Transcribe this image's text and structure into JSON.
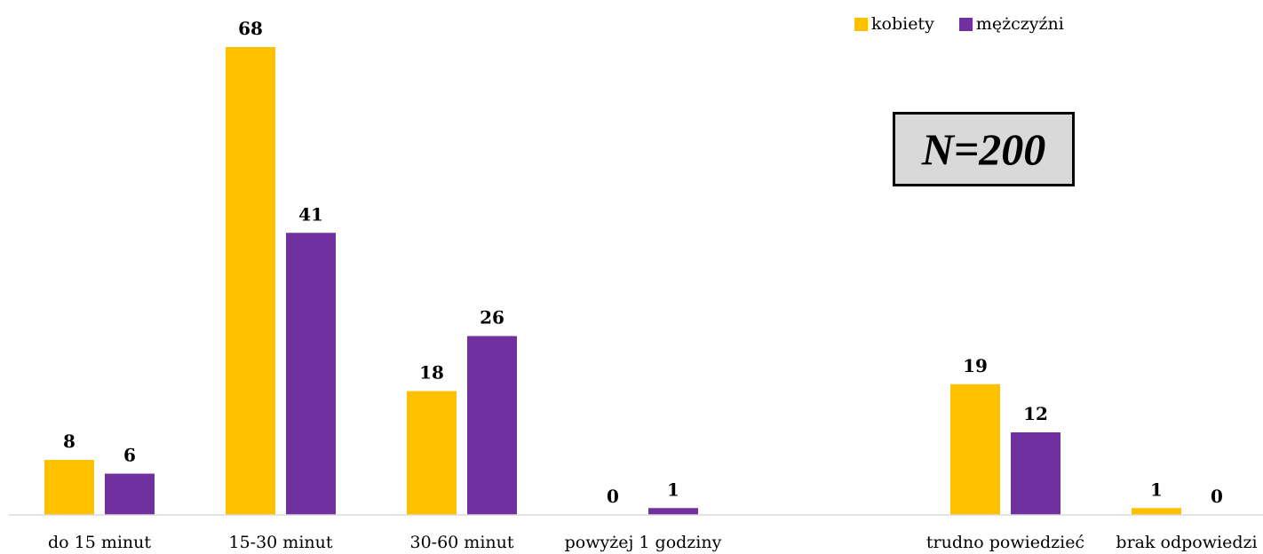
{
  "legend": {
    "women_label": "kobiety",
    "men_label": "mężczyźni"
  },
  "annotation": "N=200",
  "colors": {
    "women": "#FFC000",
    "men": "#7030A0",
    "axis": "#d9d9d9"
  },
  "chart_data": {
    "type": "bar",
    "categories": [
      "do 15 minut",
      "15-30 minut",
      "30-60 minut",
      "powyżej 1 godziny",
      "",
      "trudno powiedzieć",
      "brak odpowiedzi"
    ],
    "series": [
      {
        "name": "kobiety",
        "values": [
          8,
          68,
          18,
          0,
          null,
          19,
          1
        ]
      },
      {
        "name": "mężczyźni",
        "values": [
          6,
          41,
          26,
          1,
          null,
          12,
          0
        ]
      }
    ],
    "title": "",
    "xlabel": "",
    "ylabel": "",
    "ylim": [
      0,
      70
    ],
    "grid": false,
    "legend_position": "top-right"
  }
}
